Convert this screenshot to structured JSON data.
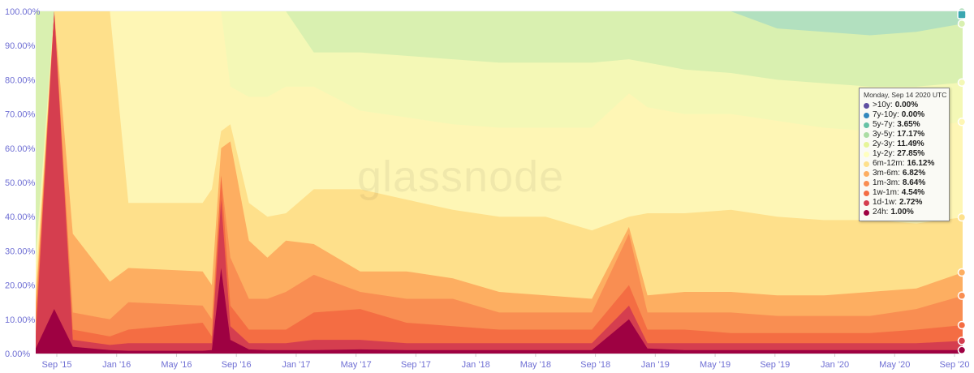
{
  "watermark": "glassnode",
  "tooltip": {
    "title": "Monday, Sep 14 2020 UTC",
    "items": [
      {
        "label": ">10y:",
        "value": "0.00%",
        "color": "#5e4fa2"
      },
      {
        "label": "7y-10y:",
        "value": "0.00%",
        "color": "#3288bd"
      },
      {
        "label": "5y-7y:",
        "value": "3.65%",
        "color": "#66c2a5"
      },
      {
        "label": "3y-5y:",
        "value": "17.17%",
        "color": "#abdda4"
      },
      {
        "label": "2y-3y:",
        "value": "11.49%",
        "color": "#e6f598"
      },
      {
        "label": "1y-2y:",
        "value": "27.85%",
        "color": "#ffffbf"
      },
      {
        "label": "6m-12m:",
        "value": "16.12%",
        "color": "#fee08b"
      },
      {
        "label": "3m-6m:",
        "value": "6.82%",
        "color": "#fdae61"
      },
      {
        "label": "1m-3m:",
        "value": "8.64%",
        "color": "#f98e52"
      },
      {
        "label": "1w-1m:",
        "value": "4.54%",
        "color": "#f46d43"
      },
      {
        "label": "1d-1w:",
        "value": "2.72%",
        "color": "#d53e4f"
      },
      {
        "label": "24h:",
        "value": "1.00%",
        "color": "#9e0142"
      }
    ]
  },
  "chart_data": {
    "type": "area",
    "stacked": true,
    "ylim": [
      0,
      100
    ],
    "yticks": [
      "0.00%",
      "10.00%",
      "20.00%",
      "30.00%",
      "40.00%",
      "50.00%",
      "60.00%",
      "70.00%",
      "80.00%",
      "90.00%",
      "100.00%"
    ],
    "x_tick_labels": [
      "Sep '15",
      "Jan '16",
      "May '16",
      "Sep '16",
      "Jan '17",
      "May '17",
      "Sep '17",
      "Jan '18",
      "May '18",
      "Sep '18",
      "Jan '19",
      "May '19",
      "Sep '19",
      "Jan '20",
      "May '20",
      "Sep '20"
    ],
    "x_range": [
      "Aug '15",
      "Sep '20"
    ],
    "bands_bottom_to_top": [
      "24h",
      "1d-1w",
      "1w-1m",
      "1m-3m",
      "3m-6m",
      "6m-12m",
      "1y-2y",
      "2y-3y",
      "3y-5y",
      "5y-7y",
      "7y-10y",
      ">10y"
    ],
    "band_colors": [
      "#9e0142",
      "#d53e4f",
      "#f46d43",
      "#f98e52",
      "#fdae61",
      "#fee08b",
      "#fef6b5",
      "#f4f8b6",
      "#d9f0b0",
      "#b2e0bf",
      "#64b8c8",
      "#5e4fa2"
    ],
    "cumulative_boundaries": {
      "t": [
        0,
        0.02,
        0.04,
        0.08,
        0.1,
        0.18,
        0.19,
        0.2,
        0.21,
        0.23,
        0.25,
        0.27,
        0.3,
        0.35,
        0.4,
        0.45,
        0.5,
        0.55,
        0.6,
        0.64,
        0.66,
        0.7,
        0.75,
        0.8,
        0.85,
        0.9,
        0.95,
        1.0
      ],
      "24h": [
        1.5,
        13,
        2,
        1,
        0.8,
        0.8,
        1,
        25,
        4,
        1.2,
        1,
        1,
        1,
        1.2,
        1,
        1,
        1,
        1,
        1,
        10,
        1.5,
        1,
        1,
        1,
        1,
        1,
        1,
        1
      ],
      "1d-1w": [
        5,
        100,
        4,
        2.5,
        3,
        3,
        3,
        45,
        8,
        3,
        3,
        3,
        4,
        4,
        3,
        3,
        3,
        3,
        3,
        14,
        3,
        3,
        3,
        3,
        3,
        3,
        3,
        3.7
      ],
      "1w-1m": [
        8,
        100,
        7,
        5,
        7,
        9,
        5,
        52,
        14,
        7,
        7,
        7,
        12,
        13,
        9,
        8,
        7,
        7,
        7,
        20,
        7,
        7,
        6,
        6,
        6,
        6,
        7,
        8.3
      ],
      "1m-3m": [
        12,
        100,
        12,
        10,
        15,
        14,
        10,
        52,
        28,
        16,
        16,
        18,
        23,
        18,
        16,
        16,
        12,
        12,
        12,
        35,
        12,
        12,
        12,
        11,
        11,
        11,
        13,
        16.9
      ],
      "3m-6m": [
        15,
        100,
        35,
        21,
        25,
        24,
        20,
        60,
        62,
        33,
        28,
        33,
        32,
        24,
        24,
        22,
        18,
        17,
        16,
        37,
        17,
        18,
        18,
        17,
        17,
        18,
        19,
        23.7
      ],
      "6m-12m": [
        20,
        100,
        100,
        100,
        44,
        44,
        48,
        65,
        67,
        44,
        40,
        41,
        48,
        48,
        45,
        42,
        40,
        40,
        36,
        40,
        41,
        41,
        42,
        40,
        39,
        39,
        38,
        39.8
      ],
      "1y-2y": [
        25,
        100,
        100,
        100,
        100,
        100,
        100,
        100,
        78,
        75,
        75,
        78,
        78,
        71,
        69,
        67,
        66,
        66,
        66,
        76,
        72,
        70,
        70,
        68,
        66,
        65,
        66,
        67.7
      ],
      "2y-3y": [
        28,
        100,
        100,
        100,
        100,
        100,
        100,
        100,
        100,
        100,
        100,
        100,
        88,
        88,
        87,
        86,
        85,
        85,
        85,
        86,
        85,
        83,
        82,
        80,
        79,
        78,
        78,
        79.2
      ],
      "3y-5y": [
        100,
        100,
        100,
        100,
        100,
        100,
        100,
        100,
        100,
        100,
        100,
        100,
        100,
        100,
        100,
        100,
        100,
        100,
        100,
        100,
        100,
        100,
        100,
        95,
        94,
        93,
        94,
        96.4
      ],
      "5y-7y": [
        100,
        100,
        100,
        100,
        100,
        100,
        100,
        100,
        100,
        100,
        100,
        100,
        100,
        100,
        100,
        100,
        100,
        100,
        100,
        100,
        100,
        100,
        100,
        100,
        100,
        100,
        100,
        100
      ]
    }
  }
}
